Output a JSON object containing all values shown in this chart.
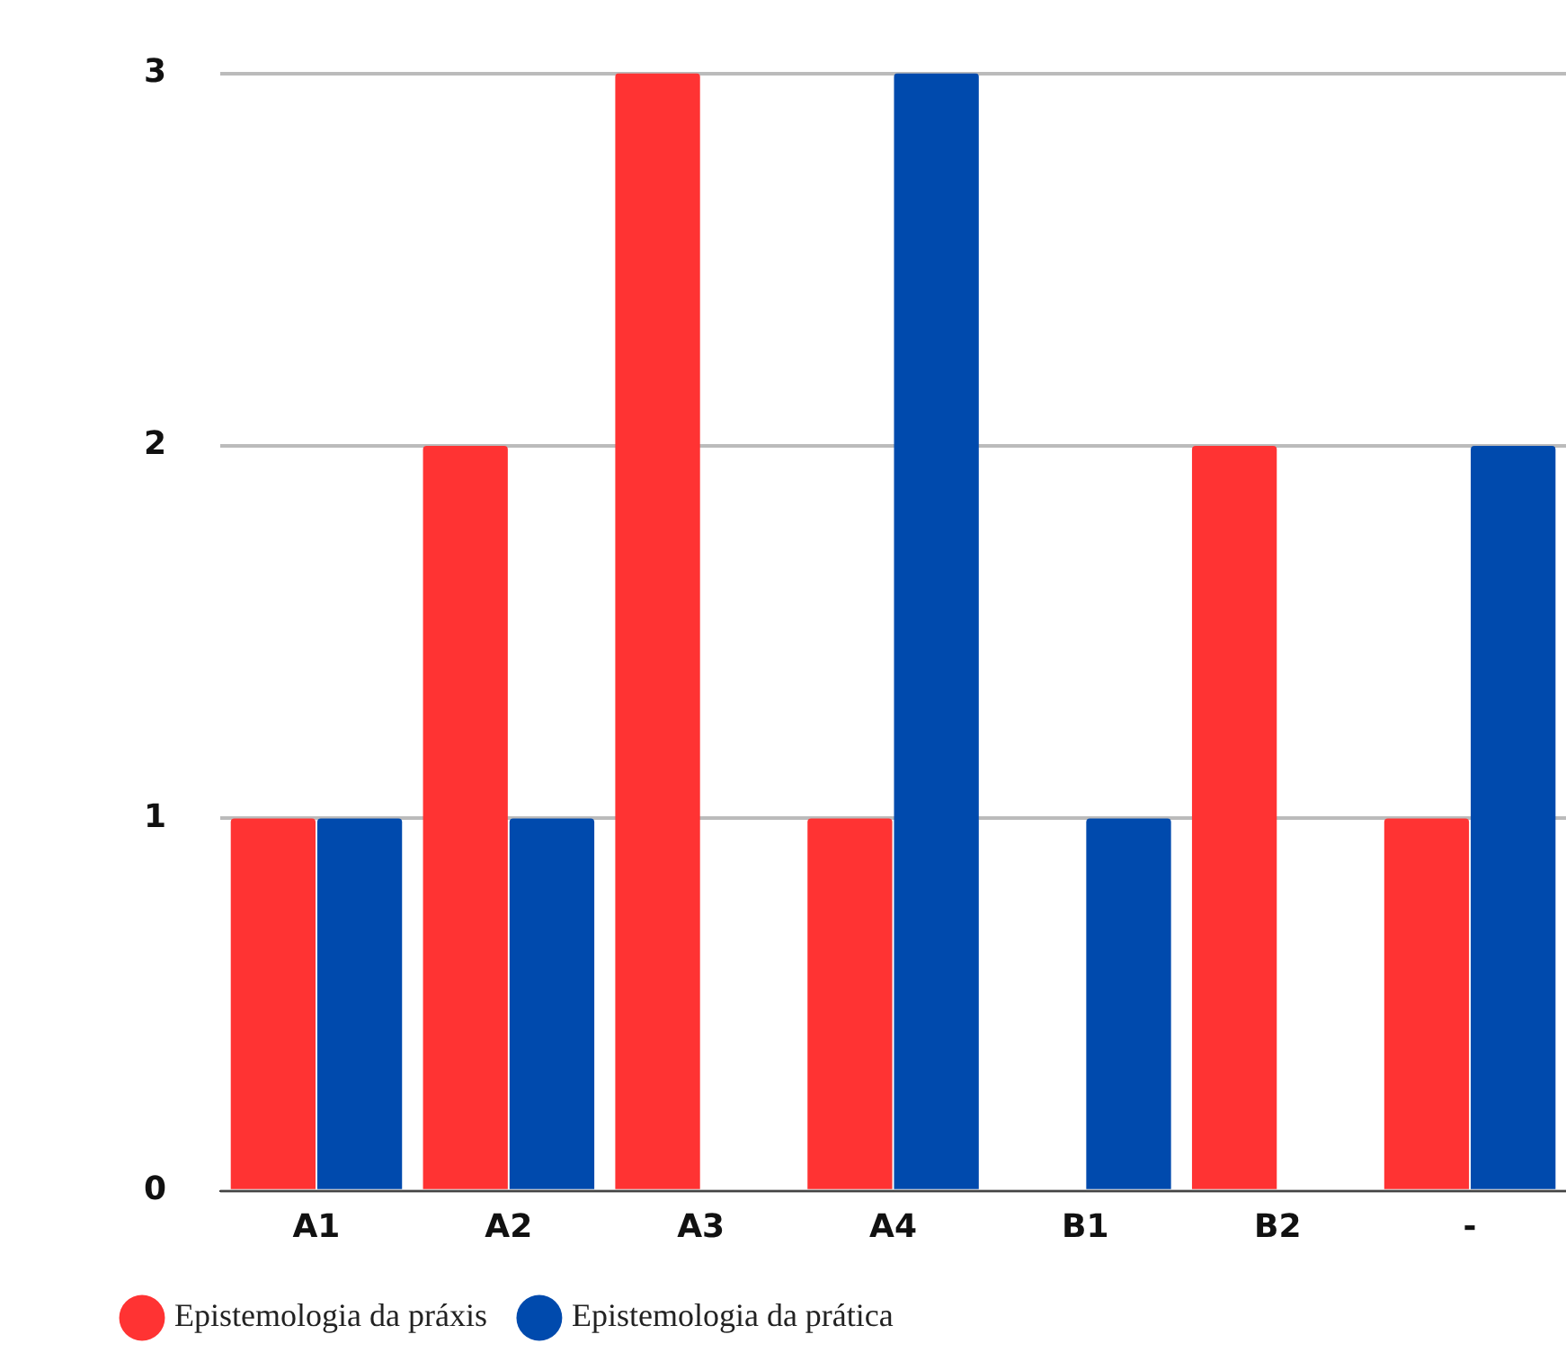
{
  "chart_data": {
    "type": "bar",
    "categories": [
      "A1",
      "A2",
      "A3",
      "A4",
      "B1",
      "B2",
      "-"
    ],
    "series": [
      {
        "name": "Epistemologia da práxis",
        "color": "#ff3333",
        "values": [
          1,
          2,
          3,
          1,
          0,
          2,
          1
        ]
      },
      {
        "name": "Epistemologia da prática",
        "color": "#004aad",
        "values": [
          1,
          1,
          0,
          3,
          1,
          0,
          2
        ]
      }
    ],
    "ylim": [
      0,
      3
    ],
    "yticks": [
      0,
      1,
      2,
      3
    ],
    "grid": "y",
    "legend": "bottom left"
  }
}
